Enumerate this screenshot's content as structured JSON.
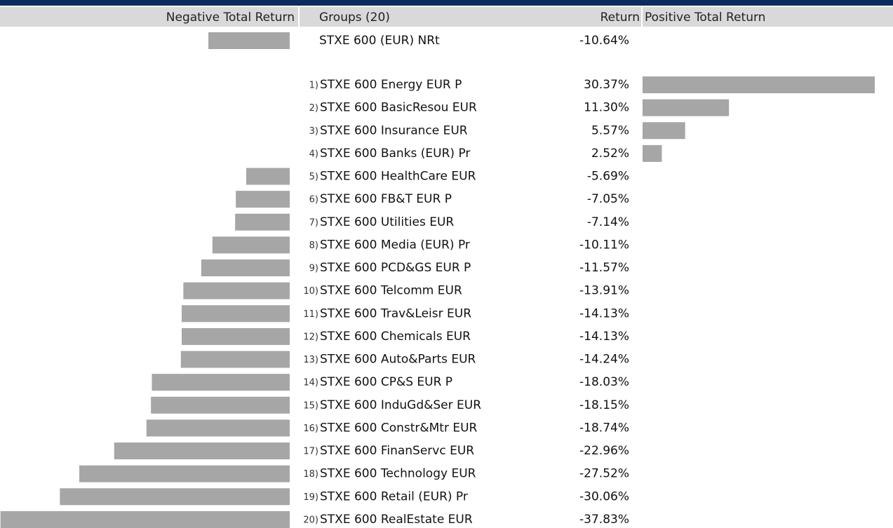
{
  "header": {
    "negative": "Negative Total Return",
    "groups": "Groups (20)",
    "return": "Return",
    "positive": "Positive Total Return"
  },
  "benchmark": {
    "name": "STXE 600 (EUR) NRt",
    "value": -10.64,
    "value_label": "-10.64%"
  },
  "colors": {
    "bar": "#a6a6a6",
    "positive": "#2e7d32",
    "negative": "#c0392b",
    "benchmark": "#4a8fe0"
  },
  "rows": {
    "ranks": [
      "1)",
      "2)",
      "3)",
      "4)",
      "5)",
      "6)",
      "7)",
      "8)",
      "9)",
      "10)",
      "11)",
      "12)",
      "13)",
      "14)",
      "15)",
      "16)",
      "17)",
      "18)",
      "19)",
      "20)"
    ],
    "names": [
      "STXE 600 Energy EUR P",
      "STXE 600 BasicResou EUR",
      "STXE 600 Insurance EUR",
      "STXE 600 Banks (EUR) Pr",
      "STXE 600 HealthCare EUR",
      "STXE 600 FB&T EUR P",
      "STXE 600 Utilities EUR",
      "STXE 600 Media (EUR) Pr",
      "STXE 600 PCD&GS EUR P",
      "STXE 600 Telcomm EUR",
      "STXE 600 Trav&Leisr EUR",
      "STXE 600 Chemicals EUR",
      "STXE 600 Auto&Parts EUR",
      "STXE 600 CP&S EUR P",
      "STXE 600 InduGd&Ser EUR",
      "STXE 600 Constr&Mtr EUR",
      "STXE 600 FinanServc EUR",
      "STXE 600 Technology EUR",
      "STXE 600 Retail (EUR) Pr",
      "STXE 600 RealEstate EUR"
    ],
    "values": [
      30.37,
      11.3,
      5.57,
      2.52,
      -5.69,
      -7.05,
      -7.14,
      -10.11,
      -11.57,
      -13.91,
      -14.13,
      -14.13,
      -14.24,
      -18.03,
      -18.15,
      -18.74,
      -22.96,
      -27.52,
      -30.06,
      -37.83
    ],
    "value_labels": [
      "30.37%",
      "11.30%",
      "5.57%",
      "2.52%",
      "-5.69%",
      "-7.05%",
      "-7.14%",
      "-10.11%",
      "-11.57%",
      "-13.91%",
      "-14.13%",
      "-14.13%",
      "-14.24%",
      "-18.03%",
      "-18.15%",
      "-18.74%",
      "-22.96%",
      "-27.52%",
      "-30.06%",
      "-37.83%"
    ]
  }
}
